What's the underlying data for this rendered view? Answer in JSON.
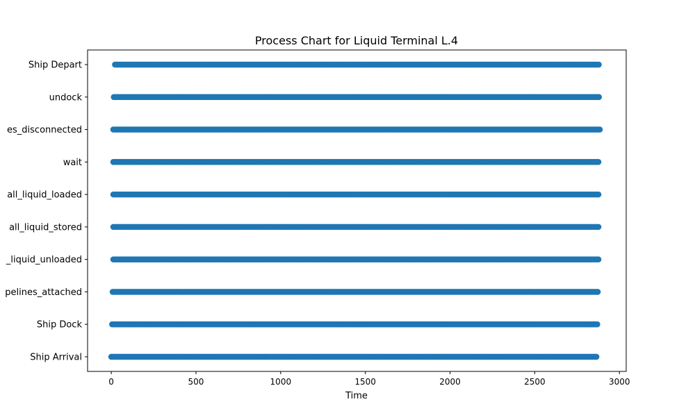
{
  "chart_data": {
    "type": "scatter",
    "title": "Process Chart for Liquid Terminal L.4",
    "xlabel": "Time",
    "ylabel": "",
    "xlim": [
      -140,
      3040
    ],
    "xticks": [
      0,
      500,
      1000,
      1500,
      2000,
      2500,
      3000
    ],
    "xtick_labels": [
      "0",
      "500",
      "1000",
      "1500",
      "2000",
      "2500",
      "3000"
    ],
    "categories_visible": [
      "Ship Arrival",
      "Ship Dock",
      "pelines_attached",
      "_liquid_unloaded",
      "all_liquid_stored",
      "all_liquid_loaded",
      "wait",
      "es_disconnected",
      "undock",
      "Ship Depart"
    ],
    "point_color": "#1f77b4",
    "legend": "none",
    "grid": false,
    "series": [
      {
        "category": "Ship Arrival",
        "x_start": 0,
        "x_end": 2870,
        "interval": 8
      },
      {
        "category": "Ship Dock",
        "x_start": 5,
        "x_end": 2875,
        "interval": 8
      },
      {
        "category": "pelines_attached",
        "x_start": 8,
        "x_end": 2878,
        "interval": 8
      },
      {
        "category": "_liquid_unloaded",
        "x_start": 12,
        "x_end": 2880,
        "interval": 8
      },
      {
        "category": "all_liquid_stored",
        "x_start": 12,
        "x_end": 2882,
        "interval": 8
      },
      {
        "category": "all_liquid_loaded",
        "x_start": 12,
        "x_end": 2882,
        "interval": 8
      },
      {
        "category": "wait",
        "x_start": 12,
        "x_end": 2882,
        "interval": 8
      },
      {
        "category": "es_disconnected",
        "x_start": 12,
        "x_end": 2884,
        "interval": 8
      },
      {
        "category": "undock",
        "x_start": 15,
        "x_end": 2885,
        "interval": 8
      },
      {
        "category": "Ship Depart",
        "x_start": 22,
        "x_end": 2885,
        "interval": 8
      }
    ]
  }
}
